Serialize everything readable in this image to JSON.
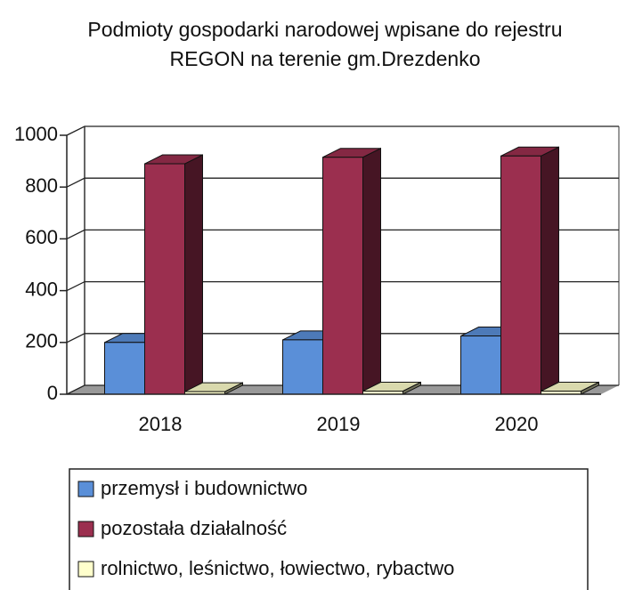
{
  "chart_data": {
    "type": "bar3d",
    "title": "Podmioty gospodarki narodowej wpisane do rejestru",
    "subtitle": "REGON na terenie gm.Drezdenko",
    "categories": [
      "2018",
      "2019",
      "2020"
    ],
    "series": [
      {
        "name": "przemysł i budownictwo",
        "color": "#5a8fd8",
        "values": [
          200,
          210,
          225
        ]
      },
      {
        "name": "pozostała działalność",
        "color": "#9b2f4f",
        "values": [
          890,
          915,
          920
        ]
      },
      {
        "name": "rolnictwo, leśnictwo, łowiectwo, rybactwo",
        "color": "#ffffcc",
        "values": [
          10,
          12,
          12
        ]
      }
    ],
    "ylim": [
      0,
      1000
    ],
    "yticks": [
      0,
      200,
      400,
      600,
      800,
      1000
    ],
    "grid": true
  }
}
